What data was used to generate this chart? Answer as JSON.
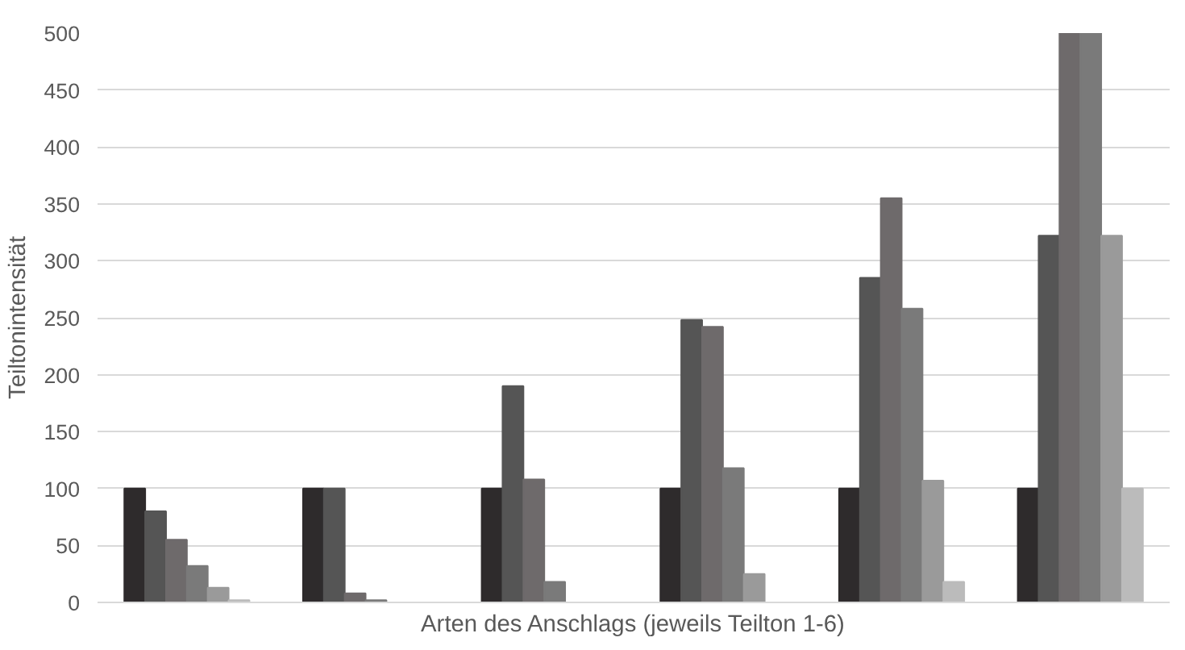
{
  "chart_data": {
    "type": "bar",
    "xlabel": "Arten des Anschlags (jeweils Teilton 1-6)",
    "ylabel": "Teiltonintensität",
    "categories": [
      null,
      null,
      null,
      null,
      null,
      null
    ],
    "series": [
      {
        "color": "#2e2b2c",
        "values": [
          100,
          100,
          100,
          100,
          100,
          100
        ]
      },
      {
        "color": "#555555",
        "values": [
          80,
          100,
          190,
          248,
          285,
          322
        ]
      },
      {
        "color": "#6e6a6b",
        "values": [
          55,
          8,
          108,
          242,
          355,
          500
        ]
      },
      {
        "color": "#7a7a7a",
        "values": [
          32,
          2,
          18,
          118,
          258,
          500
        ]
      },
      {
        "color": "#9a9a9a",
        "values": [
          13,
          0,
          0,
          25,
          107,
          322
        ]
      },
      {
        "color": "#bbbbbb",
        "values": [
          2,
          0,
          0,
          0,
          18,
          100
        ]
      }
    ],
    "ylim": [
      0,
      500
    ],
    "yticks": [
      0,
      50,
      100,
      150,
      200,
      250,
      300,
      350,
      400,
      450,
      500
    ],
    "grid": "y"
  }
}
